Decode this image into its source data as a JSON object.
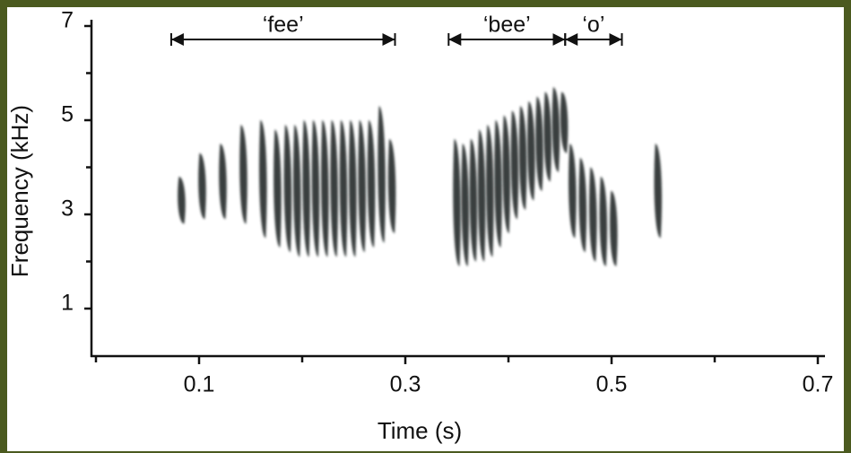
{
  "chart_data": {
    "type": "spectrogram",
    "x_label": "Time (s)",
    "y_label": "Frequency (kHz)",
    "xlim": [
      0,
      0.7
    ],
    "ylim": [
      0,
      7
    ],
    "xticks": [
      0.1,
      0.3,
      0.5,
      0.7
    ],
    "x_minor_ticks": [
      0,
      0.2,
      0.4,
      0.6
    ],
    "yticks": [
      1,
      3,
      5,
      7
    ],
    "y_minor_ticks": [
      2,
      4,
      6
    ],
    "color": "#1c2626",
    "segments": [
      {
        "label": "‘fee’",
        "start": 0.073,
        "end": 0.29
      },
      {
        "label": "‘bee’",
        "start": 0.342,
        "end": 0.455
      },
      {
        "label": "‘o’",
        "start": 0.455,
        "end": 0.51
      }
    ],
    "notes": [
      {
        "t": 0.083,
        "low": 2.8,
        "high": 3.8
      },
      {
        "t": 0.103,
        "low": 2.9,
        "high": 4.3
      },
      {
        "t": 0.123,
        "low": 2.9,
        "high": 4.5
      },
      {
        "t": 0.143,
        "low": 2.8,
        "high": 4.9
      },
      {
        "t": 0.162,
        "low": 2.5,
        "high": 5.0
      },
      {
        "t": 0.176,
        "low": 2.3,
        "high": 4.8
      },
      {
        "t": 0.186,
        "low": 2.2,
        "high": 4.9
      },
      {
        "t": 0.195,
        "low": 2.1,
        "high": 4.9
      },
      {
        "t": 0.204,
        "low": 2.1,
        "high": 5.0
      },
      {
        "t": 0.213,
        "low": 2.1,
        "high": 5.0
      },
      {
        "t": 0.222,
        "low": 2.1,
        "high": 5.0
      },
      {
        "t": 0.231,
        "low": 2.1,
        "high": 5.0
      },
      {
        "t": 0.24,
        "low": 2.1,
        "high": 5.0
      },
      {
        "t": 0.249,
        "low": 2.1,
        "high": 5.0
      },
      {
        "t": 0.258,
        "low": 2.2,
        "high": 5.0
      },
      {
        "t": 0.267,
        "low": 2.3,
        "high": 5.0
      },
      {
        "t": 0.277,
        "low": 2.4,
        "high": 5.3
      },
      {
        "t": 0.287,
        "low": 2.6,
        "high": 4.6
      },
      {
        "t": 0.35,
        "low": 1.9,
        "high": 4.6
      },
      {
        "t": 0.358,
        "low": 1.9,
        "high": 4.5
      },
      {
        "t": 0.366,
        "low": 2.0,
        "high": 4.6
      },
      {
        "t": 0.374,
        "low": 2.0,
        "high": 4.8
      },
      {
        "t": 0.382,
        "low": 2.1,
        "high": 4.9
      },
      {
        "t": 0.39,
        "low": 2.3,
        "high": 5.0
      },
      {
        "t": 0.398,
        "low": 2.6,
        "high": 5.1
      },
      {
        "t": 0.406,
        "low": 2.9,
        "high": 5.2
      },
      {
        "t": 0.414,
        "low": 3.1,
        "high": 5.3
      },
      {
        "t": 0.422,
        "low": 3.3,
        "high": 5.4
      },
      {
        "t": 0.43,
        "low": 3.5,
        "high": 5.5
      },
      {
        "t": 0.438,
        "low": 3.7,
        "high": 5.6
      },
      {
        "t": 0.446,
        "low": 3.9,
        "high": 5.7
      },
      {
        "t": 0.454,
        "low": 4.3,
        "high": 5.6
      },
      {
        "t": 0.462,
        "low": 2.5,
        "high": 4.5
      },
      {
        "t": 0.472,
        "low": 2.2,
        "high": 4.2
      },
      {
        "t": 0.482,
        "low": 2.0,
        "high": 4.0
      },
      {
        "t": 0.492,
        "low": 1.9,
        "high": 3.8
      },
      {
        "t": 0.502,
        "low": 1.9,
        "high": 3.5
      },
      {
        "t": 0.545,
        "low": 2.5,
        "high": 4.5
      }
    ]
  }
}
